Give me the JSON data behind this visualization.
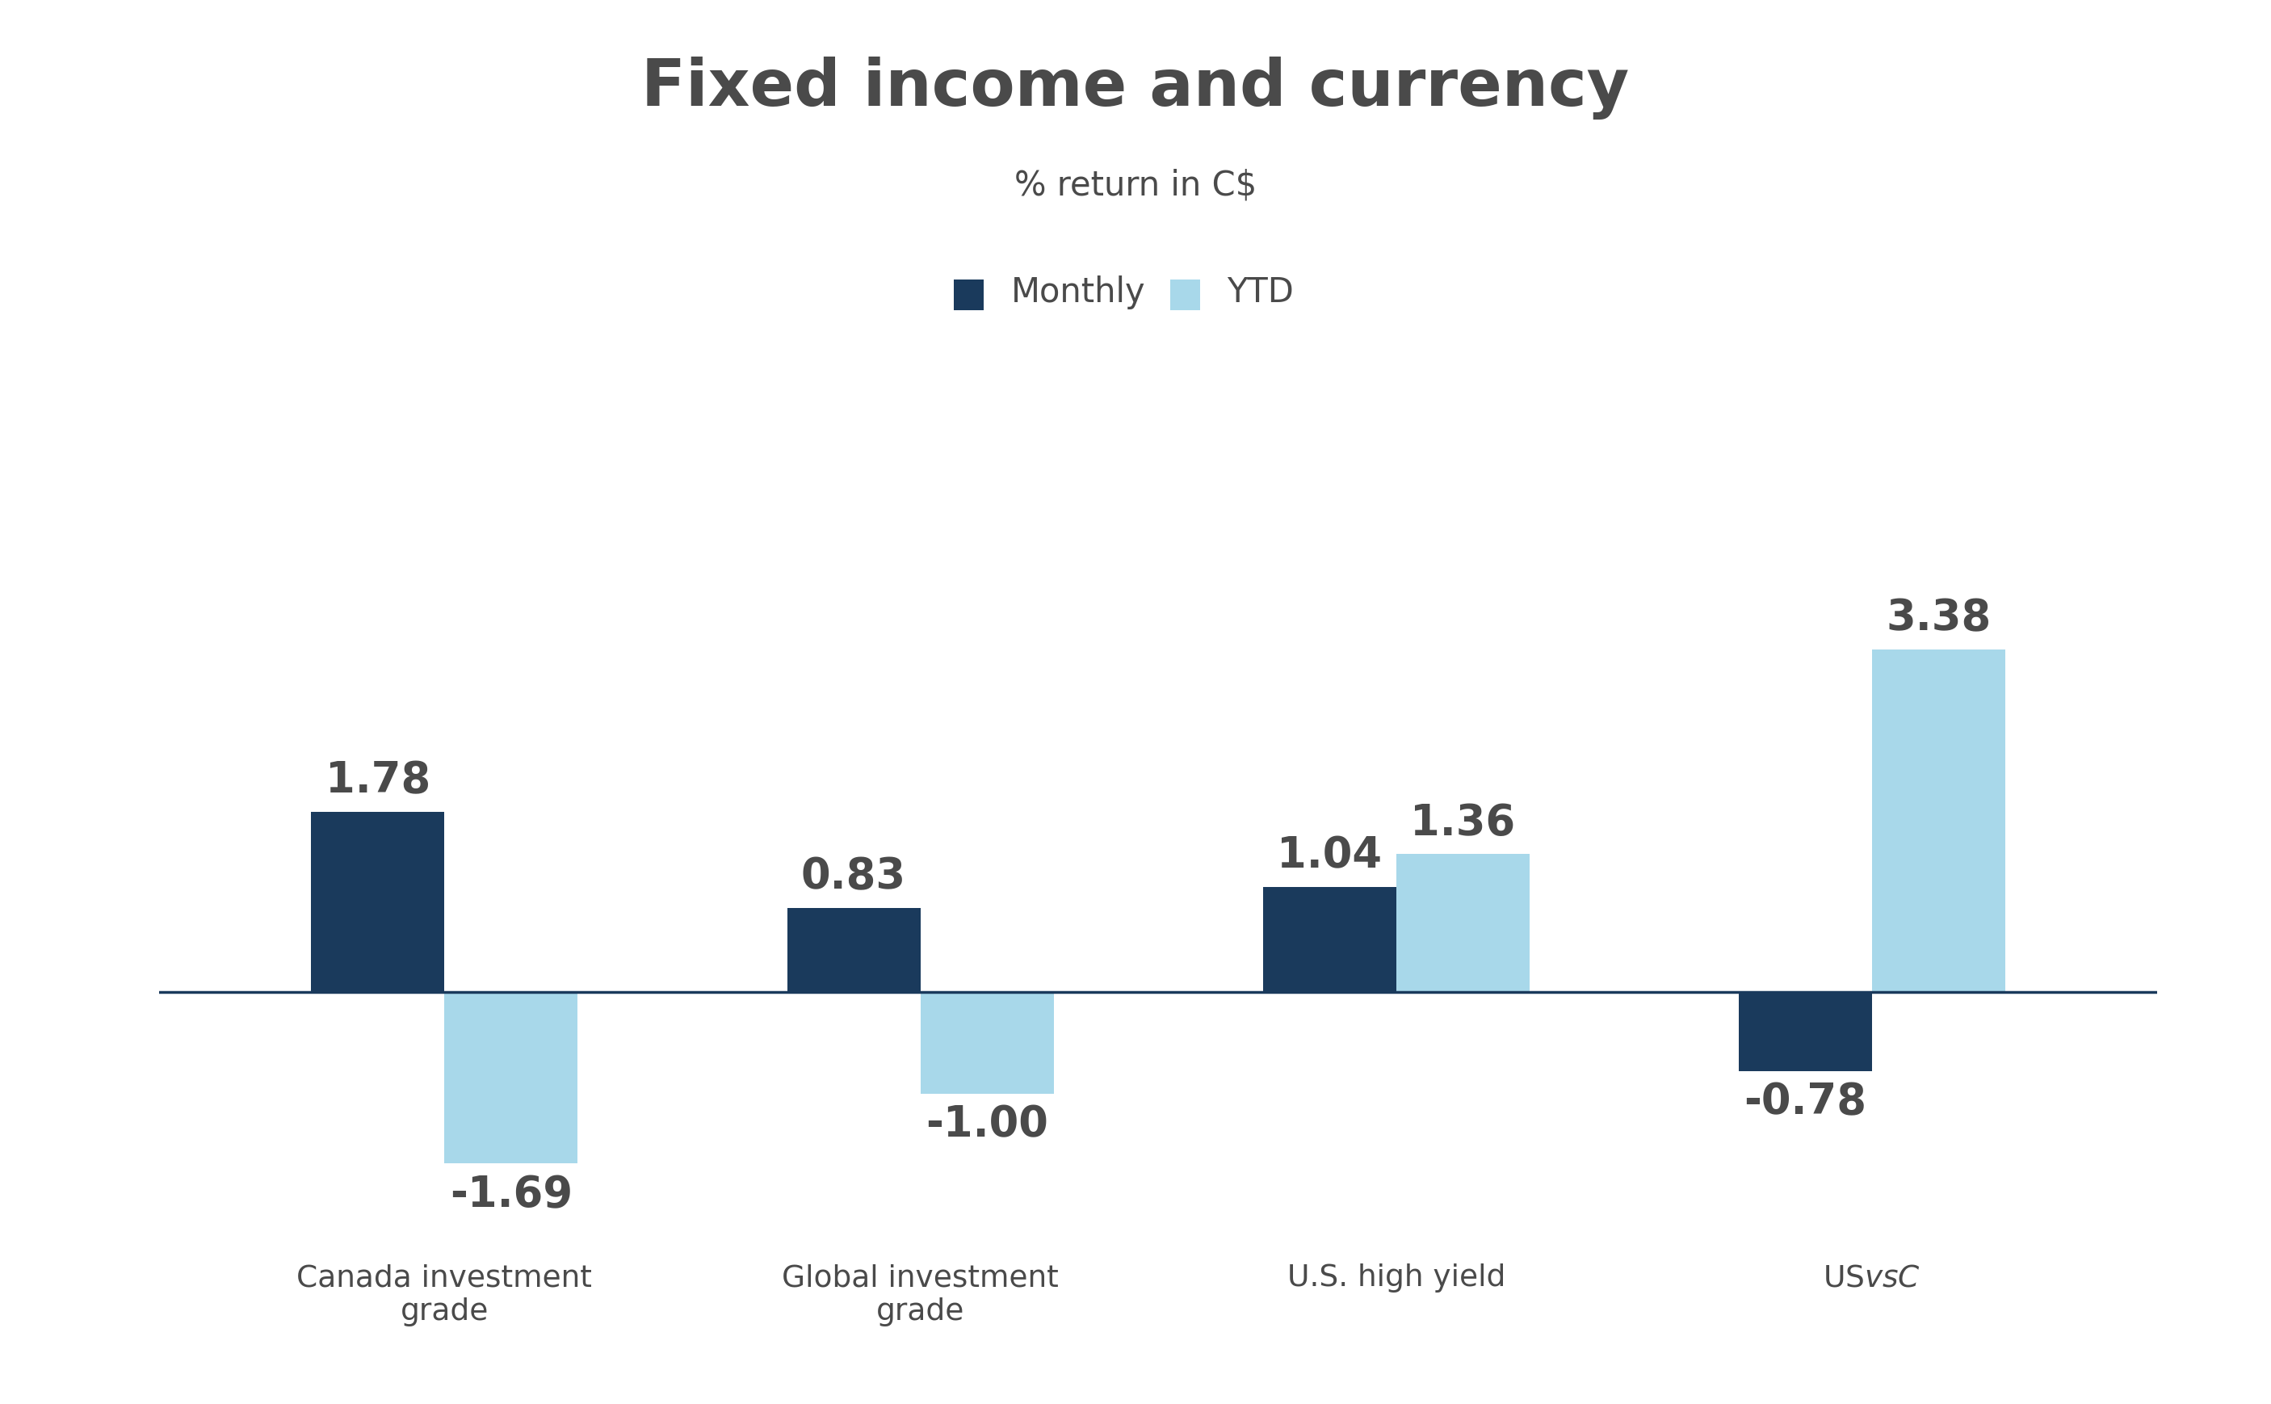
{
  "title": "Fixed income and currency",
  "subtitle": "% return in C$",
  "categories": [
    "Canada investment\ngrade",
    "Global investment\ngrade",
    "U.S. high yield",
    "US$ vs C$"
  ],
  "monthly": [
    1.78,
    0.83,
    1.04,
    -0.78
  ],
  "ytd": [
    -1.69,
    -1.0,
    1.36,
    3.38
  ],
  "monthly_color": "#1a3a5c",
  "ytd_color": "#a8d8ea",
  "bar_width": 0.28,
  "ylim": [
    -2.4,
    4.8
  ],
  "title_fontsize": 58,
  "subtitle_fontsize": 30,
  "value_fontsize": 38,
  "legend_fontsize": 30,
  "xtick_fontsize": 27,
  "text_color": "#4a4a4a",
  "axis_line_color": "#1a3a5c",
  "background_color": "#ffffff"
}
